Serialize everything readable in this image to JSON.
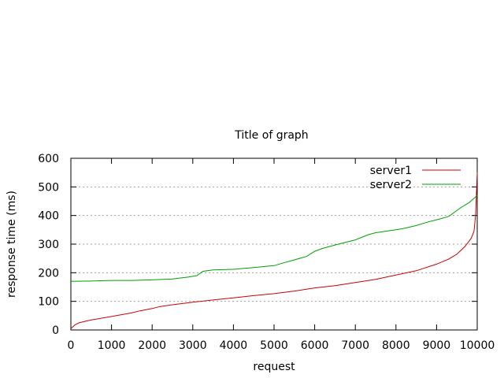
{
  "chart_data": {
    "type": "line",
    "title": "Title of graph",
    "xlabel": "request",
    "ylabel": "response time (ms)",
    "xlim": [
      0,
      10000
    ],
    "ylim": [
      0,
      600
    ],
    "xticks": [
      0,
      1000,
      2000,
      3000,
      4000,
      5000,
      6000,
      7000,
      8000,
      9000,
      10000
    ],
    "yticks": [
      0,
      100,
      200,
      300,
      400,
      500,
      600
    ],
    "grid": "horizontal dotted at y ticks",
    "legend_position": "top-right",
    "series": [
      {
        "name": "server1",
        "color": "#cc0000",
        "x": [
          0,
          100,
          200,
          500,
          1000,
          1500,
          1700,
          2000,
          2200,
          2500,
          3000,
          3500,
          4000,
          4500,
          5000,
          5500,
          6000,
          6500,
          7000,
          7500,
          8000,
          8500,
          9000,
          9300,
          9500,
          9700,
          9850,
          9920,
          9960,
          9980,
          10000
        ],
        "y": [
          5,
          18,
          25,
          35,
          47,
          60,
          67,
          75,
          82,
          88,
          97,
          105,
          112,
          120,
          127,
          136,
          147,
          155,
          166,
          177,
          192,
          207,
          230,
          248,
          265,
          292,
          320,
          345,
          400,
          480,
          550
        ]
      },
      {
        "name": "server2",
        "color": "#00a000",
        "x": [
          0,
          500,
          1000,
          1500,
          2000,
          2500,
          2900,
          3100,
          3250,
          3500,
          4000,
          4500,
          5000,
          5200,
          5500,
          5800,
          6000,
          6200,
          6500,
          7000,
          7300,
          7500,
          8000,
          8200,
          8500,
          8800,
          9000,
          9300,
          9600,
          9800,
          10000
        ],
        "y": [
          170,
          171,
          173,
          173,
          175,
          178,
          185,
          190,
          205,
          210,
          212,
          218,
          225,
          233,
          245,
          257,
          275,
          285,
          297,
          315,
          332,
          340,
          350,
          355,
          365,
          378,
          385,
          397,
          428,
          445,
          470
        ]
      }
    ]
  }
}
